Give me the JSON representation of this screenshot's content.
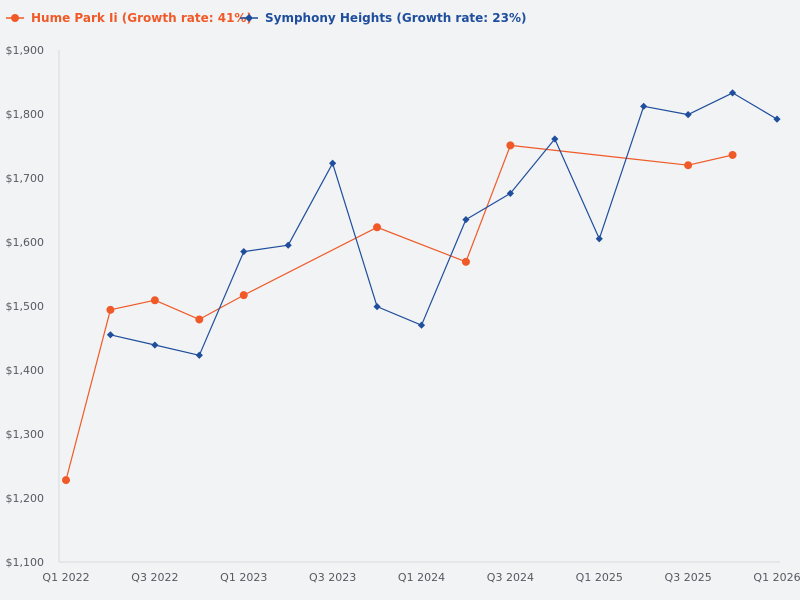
{
  "chart_data": {
    "type": "line",
    "title": "",
    "xlabel": "",
    "ylabel": "",
    "categories": [
      "Q1 2022",
      "Q2 2022",
      "Q3 2022",
      "Q4 2022",
      "Q1 2023",
      "Q2 2023",
      "Q3 2023",
      "Q4 2023",
      "Q1 2024",
      "Q2 2024",
      "Q3 2024",
      "Q4 2024",
      "Q1 2025",
      "Q2 2025",
      "Q3 2025",
      "Q4 2025",
      "Q1 2026"
    ],
    "x_tick_labels": [
      "Q1 2022",
      "Q3 2022",
      "Q1 2023",
      "Q3 2023",
      "Q1 2024",
      "Q3 2024",
      "Q1 2025",
      "Q3 2025",
      "Q1 2026"
    ],
    "y_tick_labels": [
      "$1,100",
      "$1,200",
      "$1,300",
      "$1,400",
      "$1,500",
      "$1,600",
      "$1,700",
      "$1,800",
      "$1,900"
    ],
    "ylim": [
      1100,
      1900
    ],
    "grid": false,
    "legend_position": "top-left",
    "series": [
      {
        "name": "Hume Park Ii (Growth rate: 41%)",
        "color": "#f05a28",
        "marker": "circle",
        "values": [
          1228,
          1494,
          1509,
          1479,
          1517,
          null,
          null,
          1623,
          null,
          1569,
          1751,
          null,
          null,
          null,
          1720,
          1736,
          null
        ]
      },
      {
        "name": "Symphony Heights (Growth rate: 23%)",
        "color": "#1f4e9c",
        "marker": "diamond",
        "values": [
          null,
          1455,
          1439,
          1423,
          1585,
          1595,
          1723,
          1499,
          1470,
          1635,
          1676,
          1761,
          1605,
          1812,
          1799,
          1833,
          1792
        ]
      }
    ]
  }
}
